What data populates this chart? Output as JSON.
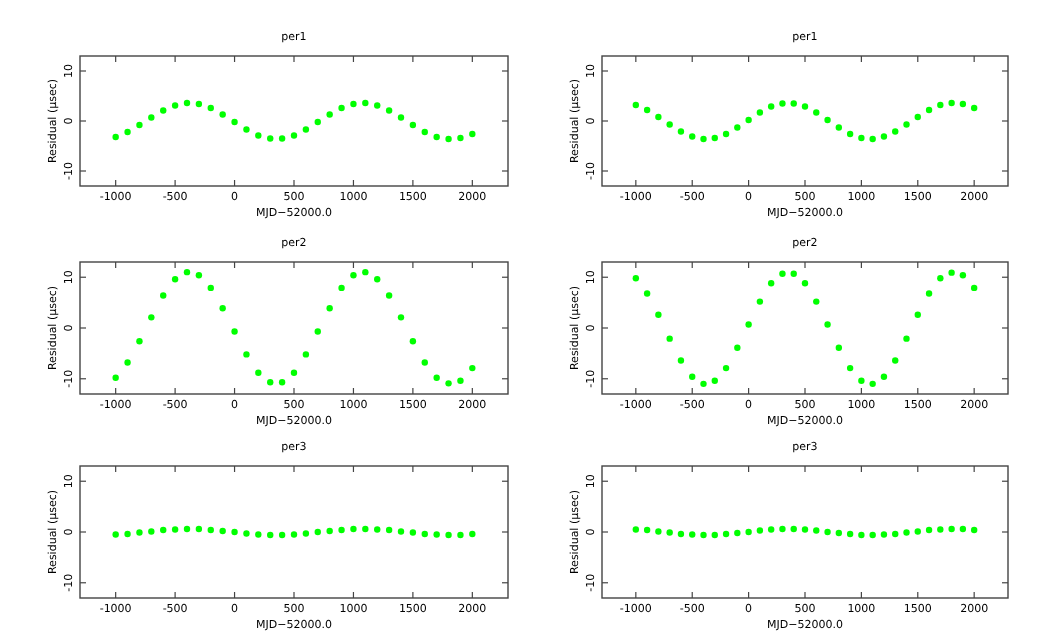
{
  "chart_data": [
    {
      "type": "scatter",
      "title": "per1",
      "xlabel": "MJD−52000.0",
      "ylabel": "Residual (μsec)",
      "color": "#00ff00",
      "marker": "circle",
      "grid": false,
      "xlim": [
        -1300,
        2300
      ],
      "ylim": [
        -13,
        13
      ],
      "xticks": [
        -1000,
        -500,
        0,
        500,
        1000,
        1500,
        2000
      ],
      "yticks": [
        -10,
        0,
        10
      ],
      "x": [
        -1000,
        -900,
        -800,
        -700,
        -600,
        -500,
        -400,
        -300,
        -200,
        -100,
        0,
        100,
        200,
        300,
        400,
        500,
        600,
        700,
        800,
        900,
        1000,
        1100,
        1200,
        1300,
        1400,
        1500,
        1600,
        1700,
        1800,
        1900,
        2000
      ],
      "values": [
        -3.2,
        -2.2,
        -0.8,
        0.7,
        2.1,
        3.1,
        3.6,
        3.4,
        2.6,
        1.3,
        -0.2,
        -1.7,
        -2.9,
        -3.5,
        -3.5,
        -2.9,
        -1.7,
        -0.2,
        1.3,
        2.6,
        3.4,
        3.6,
        3.1,
        2.1,
        0.7,
        -0.8,
        -2.2,
        -3.2,
        -3.6,
        -3.4,
        -2.6
      ]
    },
    {
      "type": "scatter",
      "title": "per1",
      "xlabel": "MJD−52000.0",
      "ylabel": "Residual (μsec)",
      "color": "#00ff00",
      "marker": "circle",
      "grid": false,
      "xlim": [
        -1300,
        2300
      ],
      "ylim": [
        -13,
        13
      ],
      "xticks": [
        -1000,
        -500,
        0,
        500,
        1000,
        1500,
        2000
      ],
      "yticks": [
        -10,
        0,
        10
      ],
      "x": [
        -1000,
        -900,
        -800,
        -700,
        -600,
        -500,
        -400,
        -300,
        -200,
        -100,
        0,
        100,
        200,
        300,
        400,
        500,
        600,
        700,
        800,
        900,
        1000,
        1100,
        1200,
        1300,
        1400,
        1500,
        1600,
        1700,
        1800,
        1900,
        2000
      ],
      "values": [
        3.2,
        2.2,
        0.8,
        -0.7,
        -2.1,
        -3.1,
        -3.6,
        -3.4,
        -2.6,
        -1.3,
        0.2,
        1.7,
        2.9,
        3.5,
        3.5,
        2.9,
        1.7,
        0.2,
        -1.3,
        -2.6,
        -3.4,
        -3.6,
        -3.1,
        -2.1,
        -0.7,
        0.8,
        2.2,
        3.2,
        3.6,
        3.4,
        2.6
      ]
    },
    {
      "type": "scatter",
      "title": "per2",
      "xlabel": "MJD−52000.0",
      "ylabel": "Residual (μsec)",
      "color": "#00ff00",
      "marker": "circle",
      "grid": false,
      "xlim": [
        -1300,
        2300
      ],
      "ylim": [
        -13,
        13
      ],
      "xticks": [
        -1000,
        -500,
        0,
        500,
        1000,
        1500,
        2000
      ],
      "yticks": [
        -10,
        0,
        10
      ],
      "x": [
        -1000,
        -900,
        -800,
        -700,
        -600,
        -500,
        -400,
        -300,
        -200,
        -100,
        0,
        100,
        200,
        300,
        400,
        500,
        600,
        700,
        800,
        900,
        1000,
        1100,
        1200,
        1300,
        1400,
        1500,
        1600,
        1700,
        1800,
        1900,
        2000
      ],
      "values": [
        -9.8,
        -6.8,
        -2.6,
        2.1,
        6.4,
        9.6,
        11.0,
        10.4,
        7.9,
        3.9,
        -0.7,
        -5.2,
        -8.8,
        -10.7,
        -10.7,
        -8.8,
        -5.2,
        -0.7,
        3.9,
        7.9,
        10.4,
        11.0,
        9.6,
        6.4,
        2.1,
        -2.6,
        -6.8,
        -9.8,
        -10.9,
        -10.4,
        -7.9
      ]
    },
    {
      "type": "scatter",
      "title": "per2",
      "xlabel": "MJD−52000.0",
      "ylabel": "Residual (μsec)",
      "color": "#00ff00",
      "marker": "circle",
      "grid": false,
      "xlim": [
        -1300,
        2300
      ],
      "ylim": [
        -13,
        13
      ],
      "xticks": [
        -1000,
        -500,
        0,
        500,
        1000,
        1500,
        2000
      ],
      "yticks": [
        -10,
        0,
        10
      ],
      "x": [
        -1000,
        -900,
        -800,
        -700,
        -600,
        -500,
        -400,
        -300,
        -200,
        -100,
        0,
        100,
        200,
        300,
        400,
        500,
        600,
        700,
        800,
        900,
        1000,
        1100,
        1200,
        1300,
        1400,
        1500,
        1600,
        1700,
        1800,
        1900,
        2000
      ],
      "values": [
        9.8,
        6.8,
        2.6,
        -2.1,
        -6.4,
        -9.6,
        -11.0,
        -10.4,
        -7.9,
        -3.9,
        0.7,
        5.2,
        8.8,
        10.7,
        10.7,
        8.8,
        5.2,
        0.7,
        -3.9,
        -7.9,
        -10.4,
        -11.0,
        -9.6,
        -6.4,
        -2.1,
        2.6,
        6.8,
        9.8,
        10.9,
        10.4,
        7.9
      ]
    },
    {
      "type": "scatter",
      "title": "per3",
      "xlabel": "MJD−52000.0",
      "ylabel": "Residual (μsec)",
      "color": "#00ff00",
      "marker": "circle",
      "grid": false,
      "xlim": [
        -1300,
        2300
      ],
      "ylim": [
        -13,
        13
      ],
      "xticks": [
        -1000,
        -500,
        0,
        500,
        1000,
        1500,
        2000
      ],
      "yticks": [
        -10,
        0,
        10
      ],
      "x": [
        -1000,
        -900,
        -800,
        -700,
        -600,
        -500,
        -400,
        -300,
        -200,
        -100,
        0,
        100,
        200,
        300,
        400,
        500,
        600,
        700,
        800,
        900,
        1000,
        1100,
        1200,
        1300,
        1400,
        1500,
        1600,
        1700,
        1800,
        1900,
        2000
      ],
      "values": [
        -0.5,
        -0.4,
        -0.1,
        0.1,
        0.4,
        0.5,
        0.6,
        0.6,
        0.4,
        0.2,
        0,
        -0.3,
        -0.5,
        -0.6,
        -0.6,
        -0.5,
        -0.3,
        0,
        0.2,
        0.4,
        0.6,
        0.6,
        0.5,
        0.4,
        0.1,
        -0.1,
        -0.4,
        -0.5,
        -0.6,
        -0.6,
        -0.4
      ]
    },
    {
      "type": "scatter",
      "title": "per3",
      "xlabel": "MJD−52000.0",
      "ylabel": "Residual (μsec)",
      "color": "#00ff00",
      "marker": "circle",
      "grid": false,
      "xlim": [
        -1300,
        2300
      ],
      "ylim": [
        -13,
        13
      ],
      "xticks": [
        -1000,
        -500,
        0,
        500,
        1000,
        1500,
        2000
      ],
      "yticks": [
        -10,
        0,
        10
      ],
      "x": [
        -1000,
        -900,
        -800,
        -700,
        -600,
        -500,
        -400,
        -300,
        -200,
        -100,
        0,
        100,
        200,
        300,
        400,
        500,
        600,
        700,
        800,
        900,
        1000,
        1100,
        1200,
        1300,
        1400,
        1500,
        1600,
        1700,
        1800,
        1900,
        2000
      ],
      "values": [
        0.5,
        0.4,
        0.1,
        -0.1,
        -0.4,
        -0.5,
        -0.6,
        -0.6,
        -0.4,
        -0.2,
        0,
        0.3,
        0.5,
        0.6,
        0.6,
        0.5,
        0.3,
        0,
        -0.2,
        -0.4,
        -0.6,
        -0.6,
        -0.5,
        -0.4,
        -0.1,
        0.1,
        0.4,
        0.5,
        0.6,
        0.6,
        0.4
      ]
    }
  ]
}
